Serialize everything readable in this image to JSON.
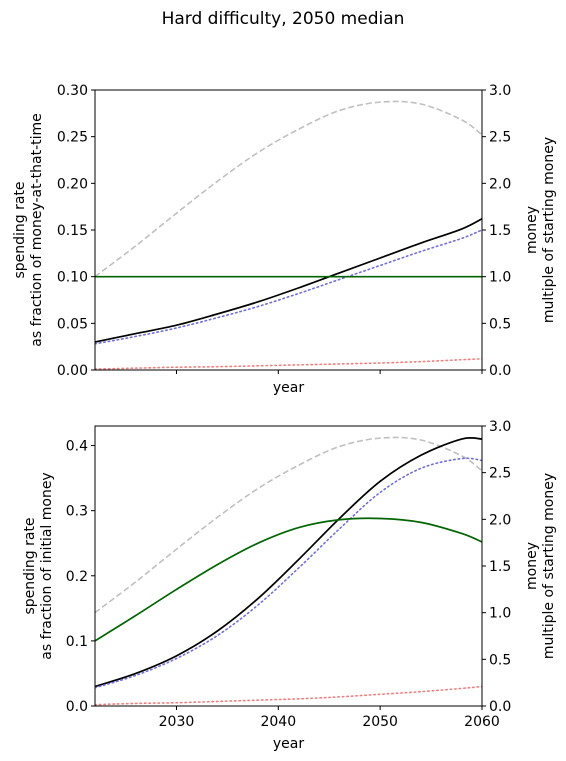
{
  "figure": {
    "suptitle": "Hard difficulty, 2050 median"
  },
  "chart_data": [
    {
      "type": "line",
      "xlabel": "year",
      "xlim": [
        2022,
        2060
      ],
      "xticks": [
        2030,
        2040,
        2050,
        2060
      ],
      "show_xtick_labels": false,
      "ylabel_lines": [
        "spending rate",
        "as fraction of money-at-that-time"
      ],
      "ylim": [
        0,
        0.3
      ],
      "yticks": [
        0.0,
        0.05,
        0.1,
        0.15,
        0.2,
        0.25,
        0.3
      ],
      "ytick_labels": [
        "0.00",
        "0.05",
        "0.10",
        "0.15",
        "0.20",
        "0.25",
        "0.30"
      ],
      "y2label_lines": [
        "money",
        "multiple of starting money"
      ],
      "y2lim": [
        0,
        3.0
      ],
      "y2ticks": [
        0.0,
        0.5,
        1.0,
        1.5,
        2.0,
        2.5,
        3.0
      ],
      "y2tick_labels": [
        "0.0",
        "0.5",
        "1.0",
        "1.5",
        "2.0",
        "2.5",
        "3.0"
      ],
      "x": [
        2022,
        2026,
        2030,
        2034,
        2038,
        2042,
        2046,
        2050,
        2054,
        2058,
        2060
      ],
      "series": [
        {
          "axis": "right",
          "color": "#c0c0c0",
          "style": "dashed",
          "values": [
            1.0,
            1.33,
            1.68,
            2.02,
            2.33,
            2.58,
            2.78,
            2.87,
            2.85,
            2.68,
            2.52
          ]
        },
        {
          "axis": "left",
          "color": "#000000",
          "style": "solid",
          "values": [
            0.03,
            0.039,
            0.048,
            0.06,
            0.073,
            0.088,
            0.104,
            0.12,
            0.136,
            0.151,
            0.162
          ]
        },
        {
          "axis": "left",
          "color": "#7070dd",
          "style": "dotted",
          "values": [
            0.028,
            0.036,
            0.045,
            0.056,
            0.068,
            0.082,
            0.097,
            0.112,
            0.127,
            0.141,
            0.15
          ]
        },
        {
          "axis": "left",
          "color": "#006400",
          "style": "solid",
          "values": [
            0.1,
            0.1,
            0.1,
            0.1,
            0.1,
            0.1,
            0.1,
            0.1,
            0.1,
            0.1,
            0.1
          ]
        },
        {
          "axis": "left",
          "color": "#f08080",
          "style": "dotted",
          "values": [
            0.001,
            0.002,
            0.003,
            0.0035,
            0.0045,
            0.0055,
            0.0065,
            0.0075,
            0.009,
            0.011,
            0.012
          ]
        }
      ]
    },
    {
      "type": "line",
      "xlabel": "year",
      "xlim": [
        2022,
        2060
      ],
      "xticks": [
        2030,
        2040,
        2050,
        2060
      ],
      "xtick_labels": [
        "2030",
        "2040",
        "2050",
        "2060"
      ],
      "show_xtick_labels": true,
      "ylabel_lines": [
        "spending rate",
        "as fraction of initial money"
      ],
      "ylim": [
        0,
        0.43
      ],
      "yticks": [
        0.0,
        0.1,
        0.2,
        0.3,
        0.4
      ],
      "ytick_labels": [
        "0.0",
        "0.1",
        "0.2",
        "0.3",
        "0.4"
      ],
      "y2label_lines": [
        "money",
        "multiple of starting money"
      ],
      "y2lim": [
        0,
        3.0
      ],
      "y2ticks": [
        0.0,
        0.5,
        1.0,
        1.5,
        2.0,
        2.5,
        3.0
      ],
      "y2tick_labels": [
        "0.0",
        "0.5",
        "1.0",
        "1.5",
        "2.0",
        "2.5",
        "3.0"
      ],
      "x": [
        2022,
        2026,
        2030,
        2034,
        2038,
        2042,
        2046,
        2050,
        2054,
        2058,
        2060
      ],
      "series": [
        {
          "axis": "right",
          "color": "#c0c0c0",
          "style": "dashed",
          "values": [
            1.0,
            1.33,
            1.68,
            2.02,
            2.33,
            2.58,
            2.78,
            2.87,
            2.85,
            2.68,
            2.52
          ]
        },
        {
          "axis": "left",
          "color": "#000000",
          "style": "solid",
          "values": [
            0.03,
            0.05,
            0.077,
            0.115,
            0.165,
            0.225,
            0.288,
            0.345,
            0.385,
            0.41,
            0.41
          ]
        },
        {
          "axis": "left",
          "color": "#7070dd",
          "style": "dotted",
          "values": [
            0.028,
            0.047,
            0.073,
            0.108,
            0.155,
            0.212,
            0.272,
            0.328,
            0.365,
            0.38,
            0.377
          ]
        },
        {
          "axis": "left",
          "color": "#006400",
          "style": "solid",
          "values": [
            0.1,
            0.139,
            0.179,
            0.217,
            0.25,
            0.274,
            0.286,
            0.288,
            0.282,
            0.265,
            0.252
          ]
        },
        {
          "axis": "left",
          "color": "#f08080",
          "style": "dotted",
          "values": [
            0.002,
            0.004,
            0.005,
            0.007,
            0.009,
            0.011,
            0.014,
            0.018,
            0.022,
            0.027,
            0.03
          ]
        }
      ]
    }
  ]
}
